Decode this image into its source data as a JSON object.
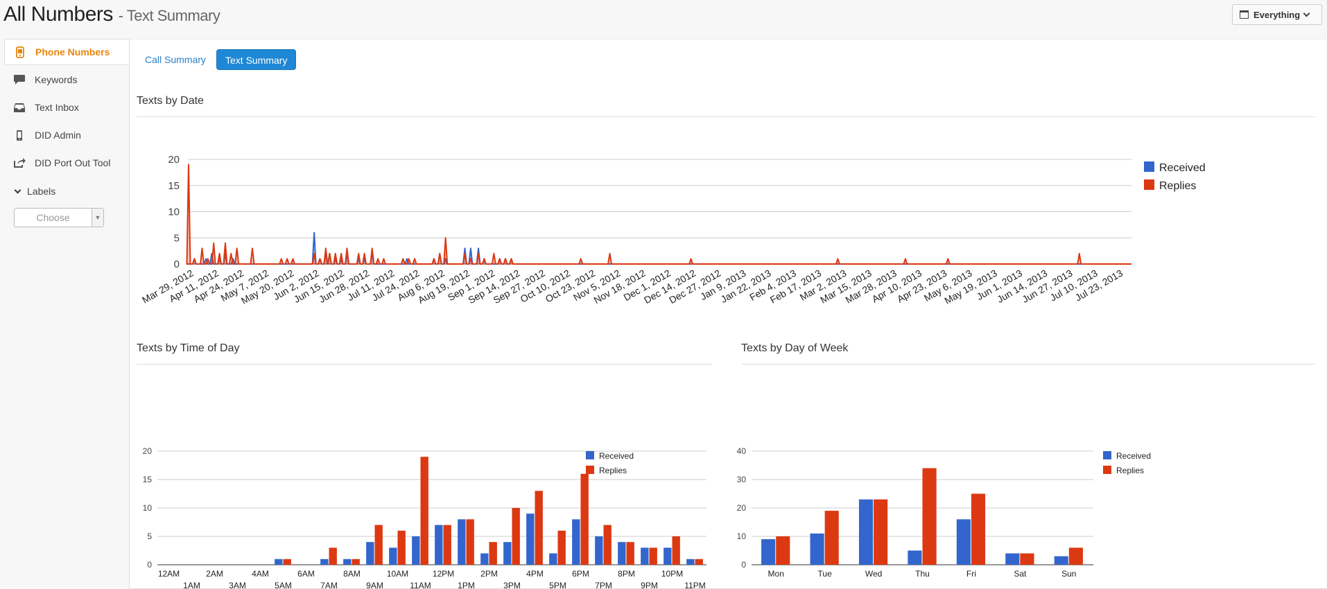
{
  "header": {
    "title": "All Numbers",
    "subtitle": "- Text Summary",
    "range_label": "Everything"
  },
  "sidebar": {
    "items": [
      {
        "label": "Phone Numbers",
        "icon": "phone-icon",
        "active": true
      },
      {
        "label": "Keywords",
        "icon": "speech-bubble-icon",
        "active": false
      },
      {
        "label": "Text Inbox",
        "icon": "inbox-icon",
        "active": false
      },
      {
        "label": "DID Admin",
        "icon": "mobile-icon",
        "active": false
      },
      {
        "label": "DID Port Out Tool",
        "icon": "share-icon",
        "active": false
      }
    ],
    "labels_heading": "Labels",
    "labels_select_placeholder": "Choose"
  },
  "tabs": [
    {
      "label": "Call Summary",
      "active": false
    },
    {
      "label": "Text Summary",
      "active": true
    }
  ],
  "sections": {
    "by_date": "Texts by Date",
    "by_time": "Texts by Time of Day",
    "by_day": "Texts by Day of Week"
  },
  "colors": {
    "received": "#3366cc",
    "replies": "#dc3912",
    "accent": "#e8850c",
    "tab_active": "#1e88d6"
  },
  "chart_data": [
    {
      "type": "area",
      "title": "",
      "xlabel": "",
      "ylabel": "",
      "ylim": [
        0,
        20
      ],
      "yticks": [
        0,
        5,
        10,
        15,
        20
      ],
      "legend_position": "right",
      "grid": true,
      "x_tick_labels": [
        "Mar 29, 2012",
        "Apr 11, 2012",
        "Apr 24, 2012",
        "May 7, 2012",
        "May 20, 2012",
        "Jun 2, 2012",
        "Jun 15, 2012",
        "Jun 28, 2012",
        "Jul 11, 2012",
        "Jul 24, 2012",
        "Aug 6, 2012",
        "Aug 19, 2012",
        "Sep 1, 2012",
        "Sep 14, 2012",
        "Sep 27, 2012",
        "Oct 10, 2012",
        "Oct 23, 2012",
        "Nov 5, 2012",
        "Nov 18, 2012",
        "Dec 1, 2012",
        "Dec 14, 2012",
        "Dec 27, 2012",
        "Jan 9, 2013",
        "Jan 22, 2013",
        "Feb 4, 2013",
        "Feb 17, 2013",
        "Mar 2, 2013",
        "Mar 15, 2013",
        "Mar 28, 2013",
        "Apr 10, 2013",
        "Apr 23, 2013",
        "May 6, 2013",
        "May 19, 2013",
        "Jun 1, 2013",
        "Jun 14, 2013",
        "Jun 27, 2013",
        "Jul 10, 2013",
        "Jul 23, 2013"
      ],
      "x_range": [
        "Mar 29, 2012",
        "Jul 30, 2013"
      ],
      "series": [
        {
          "name": "Received",
          "points": [
            [
              "Mar 29, 2012",
              0
            ],
            [
              "Apr 1, 2012",
              1
            ],
            [
              "Apr 7, 2012",
              1
            ],
            [
              "Apr 10, 2012",
              2
            ],
            [
              "Apr 14, 2012",
              1
            ],
            [
              "Apr 17, 2012",
              2
            ],
            [
              "Apr 21, 2012",
              1
            ],
            [
              "May 1, 2012",
              0
            ],
            [
              "Jun 2, 2012",
              6
            ],
            [
              "Jun 5, 2012",
              1
            ],
            [
              "Jun 8, 2012",
              2
            ],
            [
              "Jun 10, 2012",
              2
            ],
            [
              "Jun 13, 2012",
              1
            ],
            [
              "Jun 16, 2012",
              1
            ],
            [
              "Jun 19, 2012",
              2
            ],
            [
              "Jun 25, 2012",
              1
            ],
            [
              "Jun 28, 2012",
              1
            ],
            [
              "Jul 2, 2012",
              2
            ],
            [
              "Jul 20, 2012",
              1
            ],
            [
              "Aug 3, 2012",
              1
            ],
            [
              "Aug 6, 2012",
              2
            ],
            [
              "Aug 9, 2012",
              1
            ],
            [
              "Aug 19, 2012",
              3
            ],
            [
              "Aug 22, 2012",
              3
            ],
            [
              "Aug 26, 2012",
              3
            ],
            [
              "Aug 29, 2012",
              1
            ],
            [
              "Sep 6, 2012",
              1
            ],
            [
              "Sep 9, 2012",
              1
            ],
            [
              "Sep 12, 2012",
              1
            ]
          ]
        },
        {
          "name": "Replies",
          "points": [
            [
              "Mar 29, 2012",
              19
            ],
            [
              "Apr 1, 2012",
              1
            ],
            [
              "Apr 5, 2012",
              3
            ],
            [
              "Apr 8, 2012",
              1
            ],
            [
              "Apr 11, 2012",
              4
            ],
            [
              "Apr 14, 2012",
              2
            ],
            [
              "Apr 17, 2012",
              4
            ],
            [
              "Apr 20, 2012",
              2
            ],
            [
              "Apr 23, 2012",
              3
            ],
            [
              "May 1, 2012",
              3
            ],
            [
              "May 16, 2012",
              1
            ],
            [
              "May 19, 2012",
              1
            ],
            [
              "May 22, 2012",
              1
            ],
            [
              "Jun 2, 2012",
              2
            ],
            [
              "Jun 5, 2012",
              1
            ],
            [
              "Jun 8, 2012",
              3
            ],
            [
              "Jun 10, 2012",
              2
            ],
            [
              "Jun 13, 2012",
              2
            ],
            [
              "Jun 16, 2012",
              2
            ],
            [
              "Jun 19, 2012",
              3
            ],
            [
              "Jun 25, 2012",
              2
            ],
            [
              "Jun 28, 2012",
              2
            ],
            [
              "Jul 2, 2012",
              3
            ],
            [
              "Jul 5, 2012",
              1
            ],
            [
              "Jul 8, 2012",
              1
            ],
            [
              "Jul 18, 2012",
              1
            ],
            [
              "Jul 21, 2012",
              1
            ],
            [
              "Jul 24, 2012",
              1
            ],
            [
              "Aug 3, 2012",
              1
            ],
            [
              "Aug 6, 2012",
              2
            ],
            [
              "Aug 9, 2012",
              5
            ],
            [
              "Aug 19, 2012",
              2
            ],
            [
              "Aug 22, 2012",
              1
            ],
            [
              "Aug 26, 2012",
              2
            ],
            [
              "Aug 29, 2012",
              1
            ],
            [
              "Sep 3, 2012",
              2
            ],
            [
              "Sep 6, 2012",
              1
            ],
            [
              "Sep 9, 2012",
              1
            ],
            [
              "Sep 12, 2012",
              1
            ],
            [
              "Oct 18, 2012",
              1
            ],
            [
              "Nov 2, 2012",
              2
            ],
            [
              "Dec 14, 2012",
              1
            ],
            [
              "Feb 28, 2013",
              1
            ],
            [
              "Apr 4, 2013",
              1
            ],
            [
              "Apr 26, 2013",
              1
            ],
            [
              "Jul 3, 2013",
              2
            ]
          ]
        }
      ]
    },
    {
      "type": "bar",
      "title": "",
      "xlabel": "",
      "ylabel": "",
      "ylim": [
        0,
        20
      ],
      "yticks": [
        0,
        5,
        10,
        15,
        20
      ],
      "legend_position": "right",
      "grid": true,
      "categories": [
        "12AM",
        "1AM",
        "2AM",
        "3AM",
        "4AM",
        "5AM",
        "6AM",
        "7AM",
        "8AM",
        "9AM",
        "10AM",
        "11AM",
        "12PM",
        "1PM",
        "2PM",
        "3PM",
        "4PM",
        "5PM",
        "6PM",
        "7PM",
        "8PM",
        "9PM",
        "10PM",
        "11PM"
      ],
      "series": [
        {
          "name": "Received",
          "values": [
            0,
            0,
            0,
            0,
            0,
            1,
            0,
            1,
            1,
            4,
            3,
            5,
            7,
            8,
            2,
            4,
            9,
            2,
            8,
            5,
            4,
            3,
            3,
            1
          ]
        },
        {
          "name": "Replies",
          "values": [
            0,
            0,
            0,
            0,
            0,
            1,
            0,
            3,
            1,
            7,
            6,
            19,
            7,
            8,
            4,
            10,
            13,
            6,
            16,
            7,
            4,
            3,
            5,
            1
          ]
        }
      ]
    },
    {
      "type": "bar",
      "title": "",
      "xlabel": "",
      "ylabel": "",
      "ylim": [
        0,
        40
      ],
      "yticks": [
        0,
        10,
        20,
        30,
        40
      ],
      "legend_position": "right",
      "grid": true,
      "categories": [
        "Mon",
        "Tue",
        "Wed",
        "Thu",
        "Fri",
        "Sat",
        "Sun"
      ],
      "series": [
        {
          "name": "Received",
          "values": [
            9,
            11,
            23,
            5,
            16,
            4,
            3
          ]
        },
        {
          "name": "Replies",
          "values": [
            10,
            19,
            23,
            34,
            25,
            4,
            6
          ]
        }
      ]
    }
  ]
}
